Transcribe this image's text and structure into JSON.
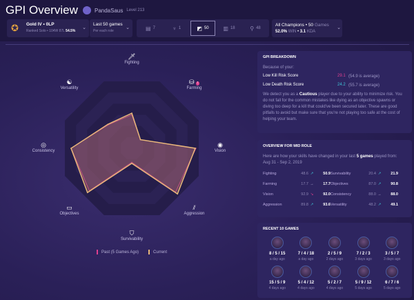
{
  "header": {
    "title": "GPI Overview",
    "username": "PandaSaus",
    "level": "Level 213"
  },
  "rank": {
    "tier": "Gold IV • 0LP",
    "queue": "Ranked Solo • 104W 87L",
    "winrate": "54.5%"
  },
  "filter": {
    "label": "Last 50 games",
    "sub": "Per each role"
  },
  "roles": [
    {
      "name": "top",
      "icon": "top-icon",
      "count": "7"
    },
    {
      "name": "jungle",
      "icon": "jungle-icon",
      "count": "1"
    },
    {
      "name": "mid",
      "icon": "mid-icon",
      "count": "50",
      "active": true
    },
    {
      "name": "bot",
      "icon": "bot-icon",
      "count": "18"
    },
    {
      "name": "support",
      "icon": "support-icon",
      "count": "48"
    }
  ],
  "champions": {
    "label": "All Champions",
    "games": "50",
    "games_word": "Games",
    "winrate": "52.0%",
    "win_word": "WIN",
    "kda": "3.1",
    "kda_word": "KDA"
  },
  "chart_data": {
    "type": "radar",
    "axes": [
      "Fighting",
      "Farming",
      "Vision",
      "Aggression",
      "Survivability",
      "Objectives",
      "Consistency",
      "Versatility"
    ],
    "range": [
      0,
      100
    ],
    "series": [
      {
        "name": "Past (5 Games Ago)",
        "color": "#e0408f",
        "values": [
          48.6,
          17.7,
          92.9,
          89.8,
          20.4,
          87.0,
          88.0,
          48.2
        ]
      },
      {
        "name": "Current",
        "color": "#e8b77a",
        "values": [
          50.9,
          17.7,
          92.0,
          93.6,
          21.9,
          90.8,
          88.0,
          49.1
        ]
      }
    ],
    "alert_axis": "Farming"
  },
  "breakdown": {
    "title": "GPI BREAKDOWN",
    "intro": "Because of your:",
    "items": [
      {
        "label": "Low Kill Risk Score",
        "value": "29.1",
        "avg": "(54.9 is average)",
        "color": "#e0408f"
      },
      {
        "label": "Low Death Risk Score",
        "value": "24.2",
        "avg": "(55.7 is average)",
        "color": "#3ec3d6"
      }
    ],
    "text_pre": "We detect you as a ",
    "highlight": "Cautious",
    "text_post": " player due to your ability to minimize risk.  You do not fall for the common mistakes like dying as an objective spawns or diving too deep for a kill that could've been secured later. These are good pitfalls to avoid but make sure that you're not playing too safe at the cost of helping your team."
  },
  "overview": {
    "title": "OVERVIEW FOR MID ROLE",
    "text_pre": "Here are how your skills have changed in your last ",
    "highlight": "5 games",
    "text_post": " played from:",
    "dates": "Aug 31 - Sep 2, 2019",
    "stats": [
      {
        "name": "Fighting",
        "old": "48.6",
        "new": "50.9",
        "trend": "up"
      },
      {
        "name": "Survivability",
        "old": "20.4",
        "new": "21.9",
        "trend": "up"
      },
      {
        "name": "Farming",
        "old": "17.7",
        "new": "17.7",
        "trend": "eq"
      },
      {
        "name": "Objectives",
        "old": "87.0",
        "new": "90.8",
        "trend": "up"
      },
      {
        "name": "Vision",
        "old": "92.9",
        "new": "92.0",
        "trend": "dn"
      },
      {
        "name": "Consistency",
        "old": "88.0",
        "new": "88.0",
        "trend": "eq"
      },
      {
        "name": "Aggression",
        "old": "89.8",
        "new": "93.6",
        "trend": "up"
      },
      {
        "name": "Versatility",
        "old": "48.2",
        "new": "49.1",
        "trend": "up"
      }
    ]
  },
  "recent": {
    "title": "RECENT 10 GAMES",
    "games": [
      {
        "kda": "8 / 5 / 15",
        "ago": "a day ago"
      },
      {
        "kda": "7 / 4 / 18",
        "ago": "a day ago"
      },
      {
        "kda": "2 / 5 / 9",
        "ago": "2 days ago"
      },
      {
        "kda": "7 / 2 / 3",
        "ago": "3 days ago"
      },
      {
        "kda": "3 / 5 / 7",
        "ago": "3 days ago"
      },
      {
        "kda": "15 / 5 / 9",
        "ago": "4 days ago"
      },
      {
        "kda": "5 / 4 / 12",
        "ago": "4 days ago"
      },
      {
        "kda": "5 / 2 / 7",
        "ago": "4 days ago"
      },
      {
        "kda": "5 / 9 / 12",
        "ago": "5 days ago"
      },
      {
        "kda": "6 / 7 / 6",
        "ago": "5 days ago"
      }
    ]
  }
}
